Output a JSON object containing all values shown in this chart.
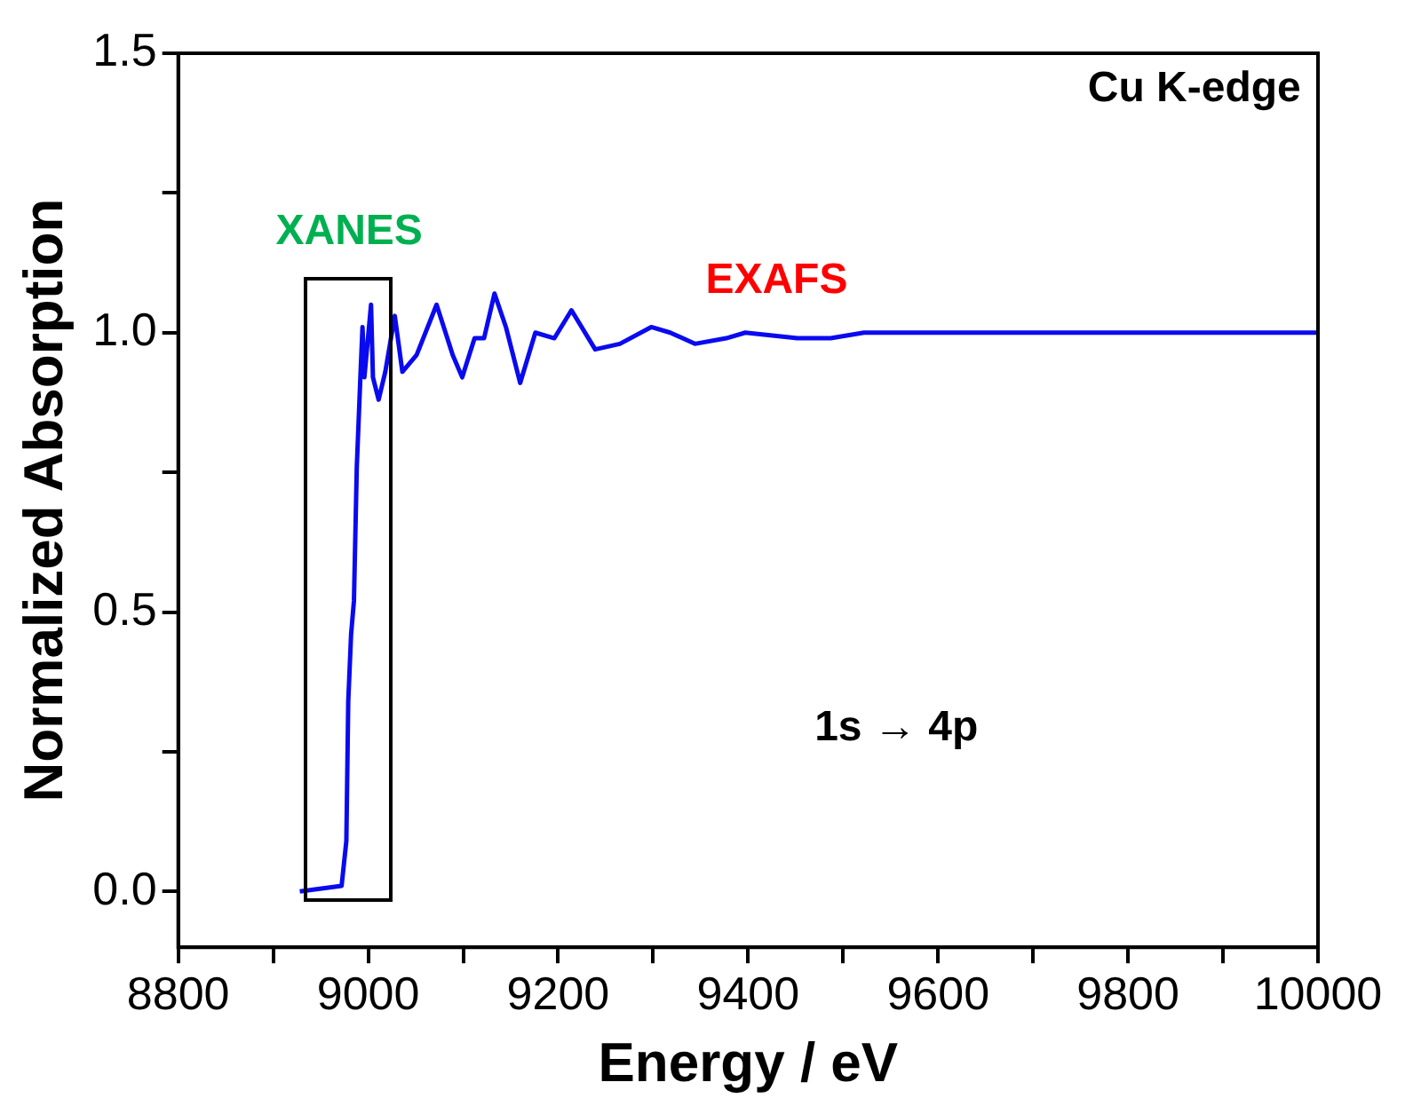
{
  "chart_data": {
    "type": "line",
    "xlabel": "Energy / eV",
    "ylabel": "Normalized Absorption",
    "x": [
      8928,
      8972,
      8977,
      8979,
      8982,
      8985,
      8988,
      8992,
      8994,
      8996,
      9003,
      9005,
      9011,
      9018,
      9028,
      9036,
      9051,
      9072,
      9089,
      9099,
      9112,
      9122,
      9133,
      9145,
      9160,
      9176,
      9196,
      9214,
      9239,
      9265,
      9298,
      9318,
      9344,
      9377,
      9397,
      9452,
      9487,
      9522,
      9600,
      9700,
      9800,
      9900,
      10000
    ],
    "series": [
      {
        "color": "#0a0af0",
        "values": [
          0,
          0.01,
          0.09,
          0.34,
          0.46,
          0.52,
          0.76,
          0.93,
          1.01,
          0.92,
          1.05,
          0.92,
          0.88,
          0.93,
          1.03,
          0.93,
          0.96,
          1.05,
          0.96,
          0.92,
          0.99,
          0.99,
          1.07,
          1.01,
          0.91,
          1.0,
          0.99,
          1.04,
          0.97,
          0.98,
          1.01,
          1.0,
          0.98,
          0.99,
          1.0,
          0.99,
          0.99,
          1.0,
          1.0,
          1.0,
          1.0,
          1.0,
          1.0
        ]
      }
    ],
    "xlim": [
      8800,
      10000
    ],
    "xticks": [
      8800,
      {
        "value": 8900,
        "label": null
      },
      9000,
      {
        "value": 9100,
        "label": null
      },
      9200,
      {
        "value": 9300,
        "label": null
      },
      9400,
      {
        "value": 9500,
        "label": null
      },
      9600,
      {
        "value": 9700,
        "label": null
      },
      9800,
      {
        "value": 9900,
        "label": null
      },
      10000
    ],
    "ylim": [
      -0.1,
      1.5
    ],
    "yticks": [
      {
        "value": 0,
        "label": "0.0"
      },
      {
        "value": 0.25,
        "label": null
      },
      {
        "value": 0.5,
        "label": "0.5"
      },
      {
        "value": 0.75,
        "label": null
      },
      {
        "value": 1,
        "label": "1.0"
      },
      {
        "value": 1.25,
        "label": null
      },
      {
        "value": 1.5,
        "label": "1.5"
      }
    ],
    "marker": "none",
    "line_style": "solid",
    "legend": false,
    "annotations": [
      "Cu K-edge",
      "1s → 4p",
      "XANES",
      "EXAFS"
    ]
  }
}
